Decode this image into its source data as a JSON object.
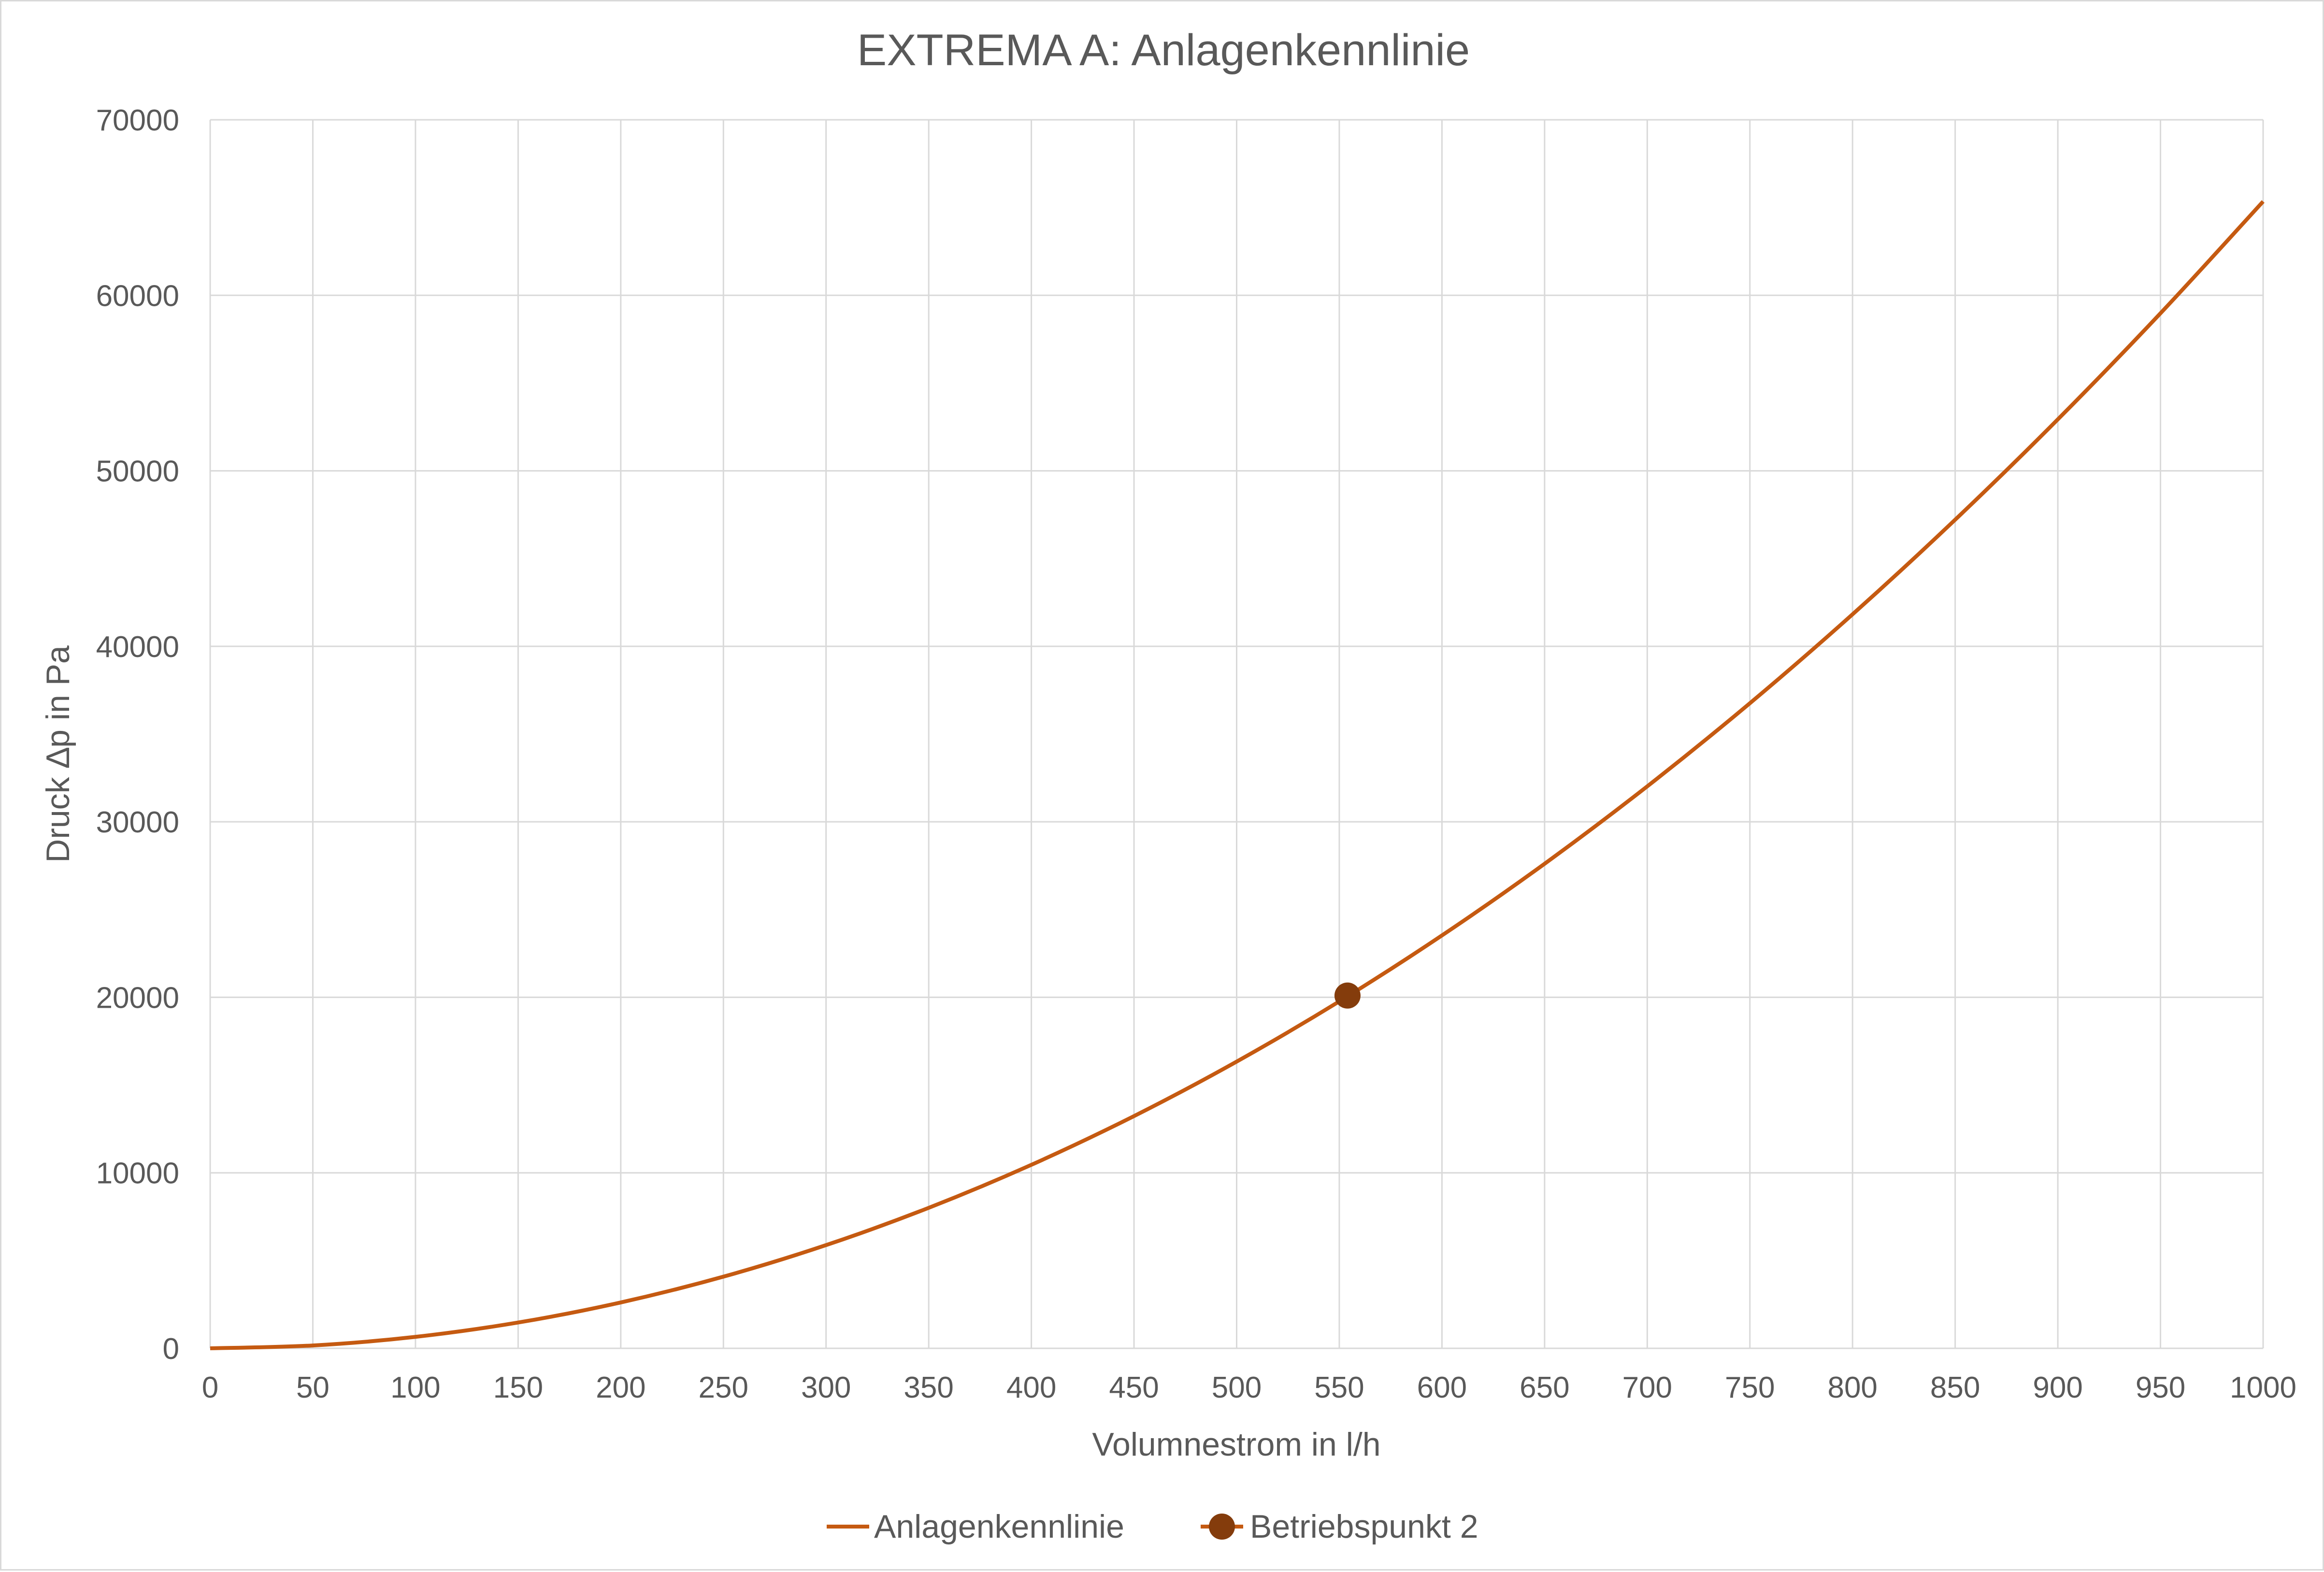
{
  "chart_data": {
    "type": "line",
    "title": "EXTREMA A: Anlagenkennlinie",
    "xlabel": "Volumnestrom in l/h",
    "ylabel": "Druck ∆p in Pa",
    "xlim": [
      0,
      1000
    ],
    "ylim": [
      0,
      70000
    ],
    "x_ticks": [
      0,
      50,
      100,
      150,
      200,
      250,
      300,
      350,
      400,
      450,
      500,
      550,
      600,
      650,
      700,
      750,
      800,
      850,
      900,
      950,
      1000
    ],
    "y_ticks": [
      0,
      10000,
      20000,
      30000,
      40000,
      50000,
      60000,
      70000
    ],
    "grid": true,
    "legend_position": "bottom",
    "series": [
      {
        "name": "Anlagenkennlinie",
        "kind": "line",
        "color": "#c55a11",
        "x": [
          0,
          50,
          100,
          150,
          200,
          250,
          300,
          350,
          400,
          450,
          500,
          550,
          600,
          650,
          700,
          750,
          800,
          850,
          900,
          950,
          1000
        ],
        "y": [
          0,
          163,
          654,
          1470,
          2614,
          4084,
          5881,
          8005,
          10456,
          13233,
          16337,
          19768,
          23526,
          27610,
          32021,
          36758,
          41823,
          47214,
          52931,
          58976,
          65347
        ]
      },
      {
        "name": "Betriebspunkt 2",
        "kind": "marker",
        "color": "#843c0c",
        "x": [
          554
        ],
        "y": [
          20100
        ]
      }
    ]
  }
}
